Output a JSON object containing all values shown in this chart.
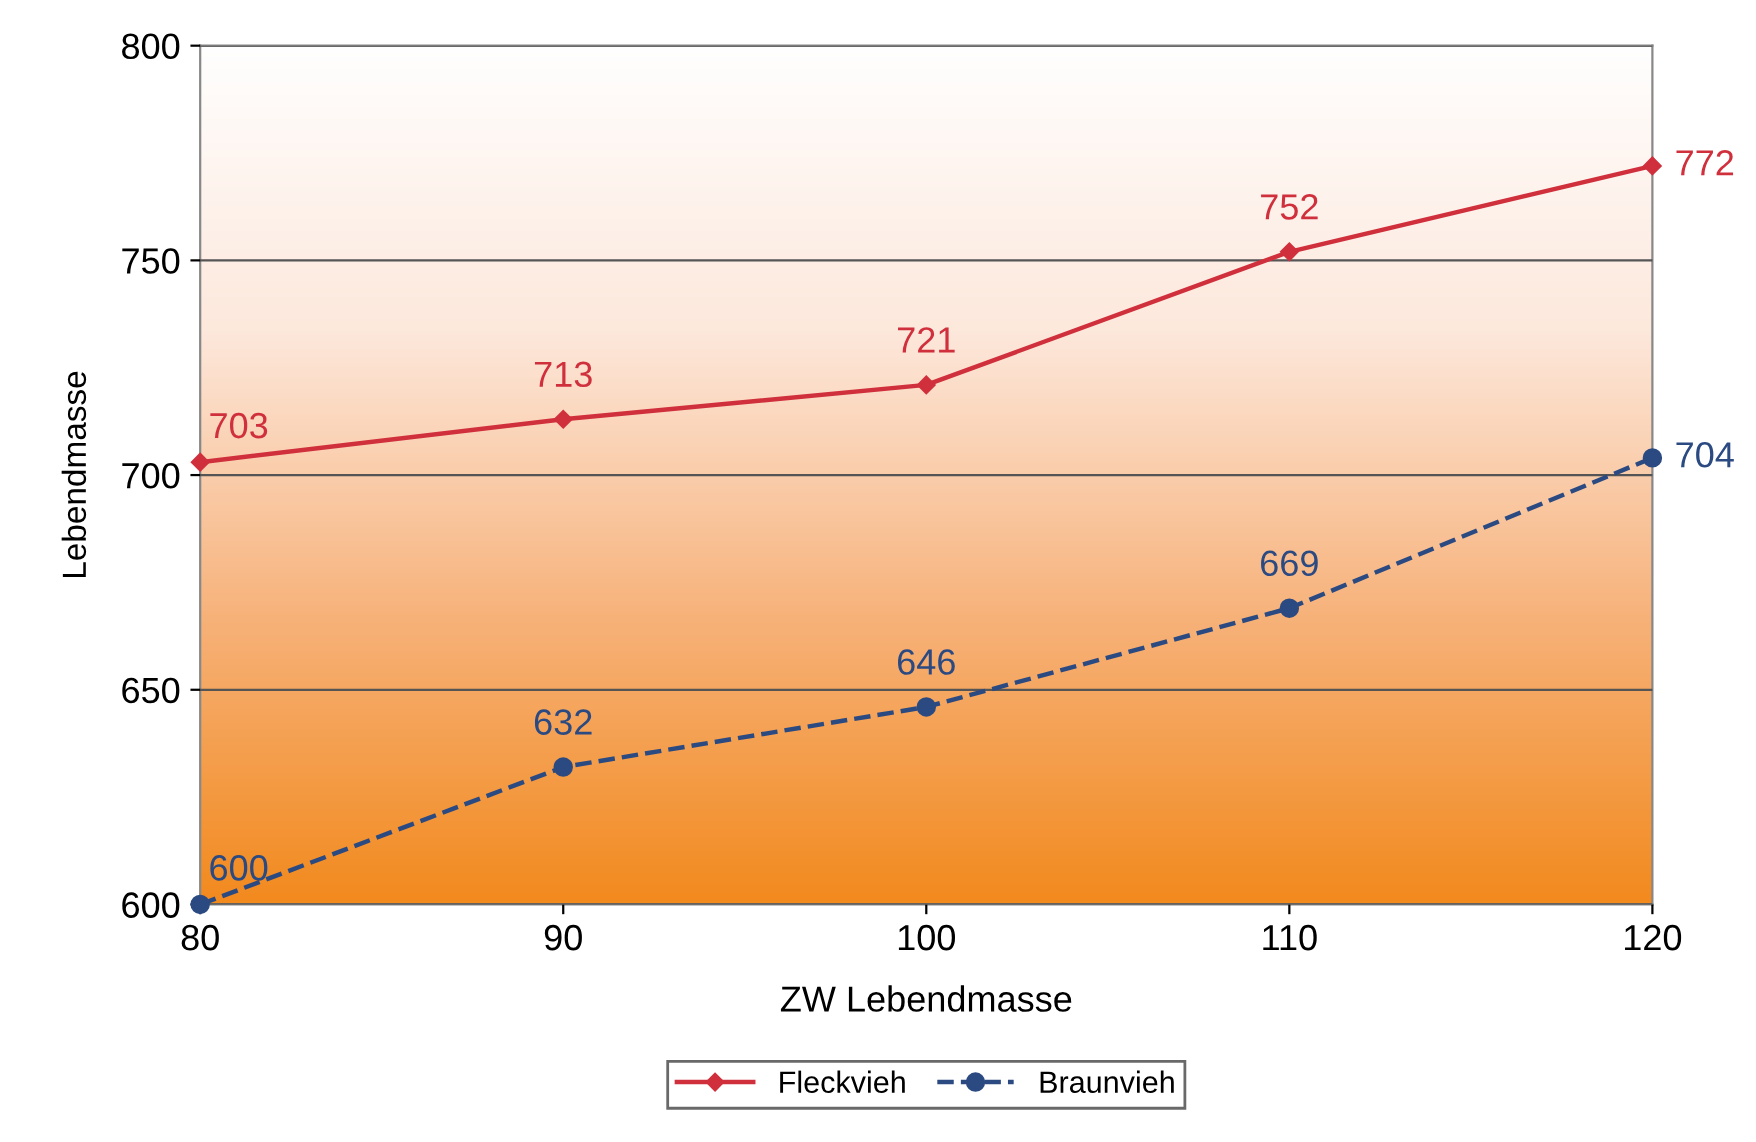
{
  "chart_data": {
    "type": "line",
    "xlabel": "ZW Lebendmasse",
    "ylabel": "Lebendmasse",
    "x": [
      80,
      90,
      100,
      110,
      120
    ],
    "series": [
      {
        "name": "Fleckvieh",
        "color": "#d02f3c",
        "values": [
          703,
          713,
          721,
          752,
          772
        ],
        "marker": "diamond",
        "line_style": "solid"
      },
      {
        "name": "Braunvieh",
        "color": "#2b4a82",
        "values": [
          600,
          632,
          646,
          669,
          704
        ],
        "marker": "circle",
        "line_style": "dashed"
      }
    ],
    "xlim": [
      80,
      120
    ],
    "xticks": [
      80,
      90,
      100,
      110,
      120
    ],
    "ylim": [
      600,
      800
    ],
    "yticks": [
      600,
      650,
      700,
      750,
      800
    ],
    "grid": "y",
    "legend": "bottom",
    "data_labels": true
  }
}
